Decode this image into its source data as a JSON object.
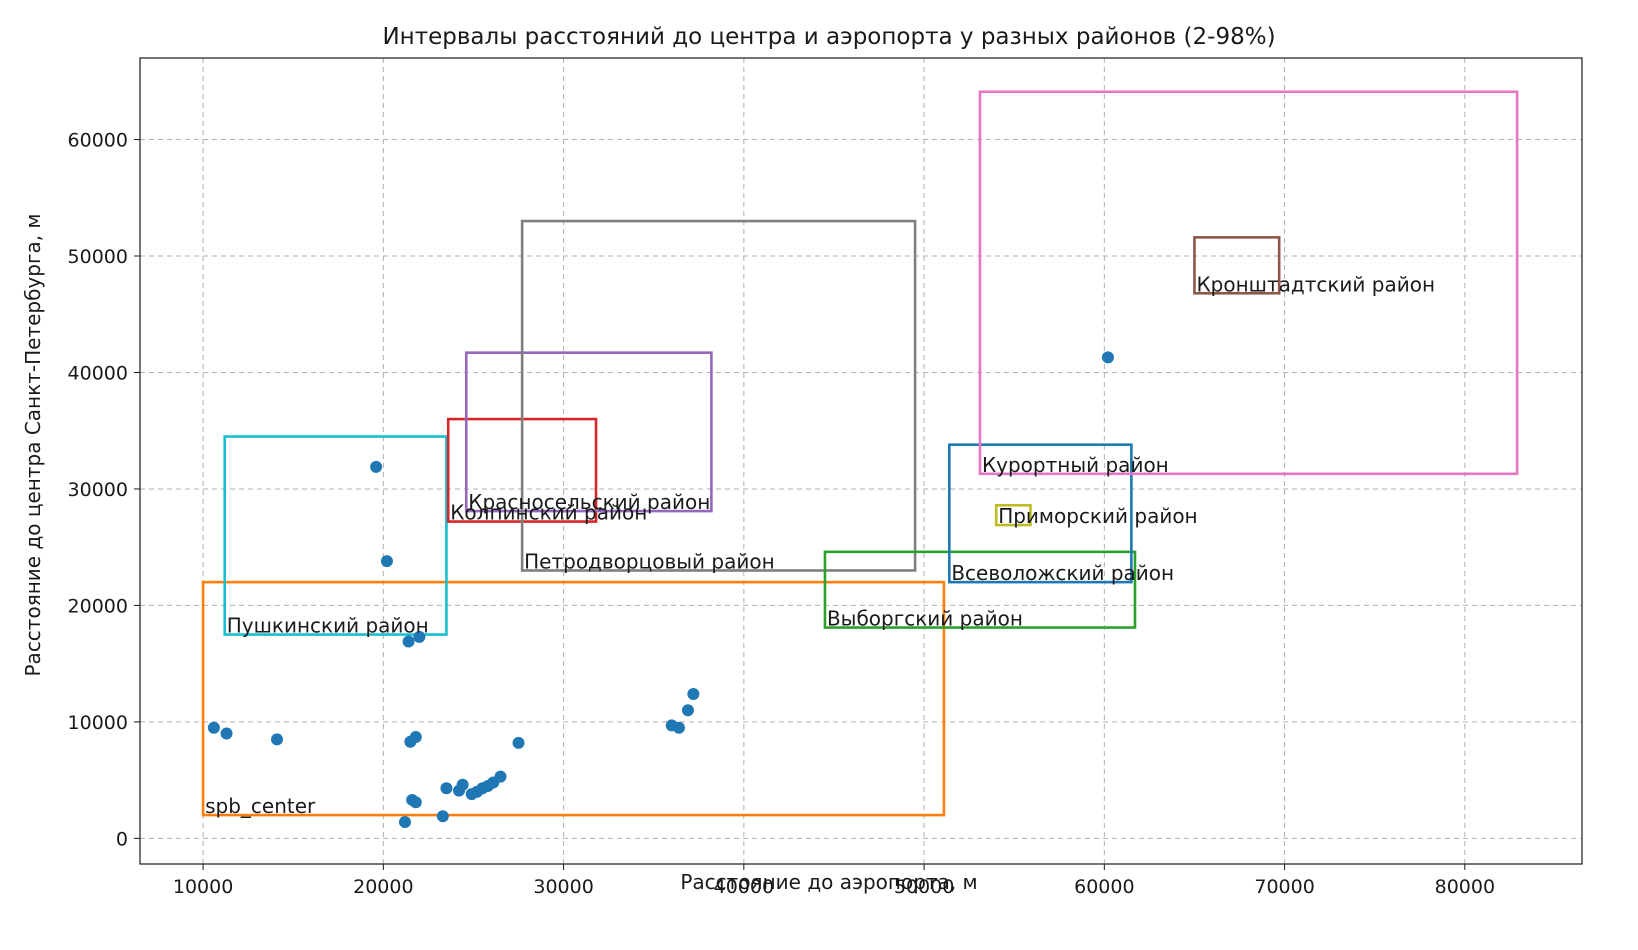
{
  "chart_data": {
    "type": "scatter",
    "title": "Интервалы расстояний до центра и аэропорта у разных районов (2-98%)",
    "xlabel": "Расстояние до аэропорта, м",
    "ylabel": "Расстояние до центра Санкт-Петербурга, м",
    "xlim": [
      6500,
      86500
    ],
    "ylim": [
      -2200,
      67000
    ],
    "xticks": [
      10000,
      20000,
      30000,
      40000,
      50000,
      60000,
      70000,
      80000
    ],
    "yticks": [
      0,
      10000,
      20000,
      30000,
      40000,
      50000,
      60000
    ],
    "grid": true,
    "point_color": "#1f77b4",
    "points": [
      {
        "x": 10600,
        "y": 9500
      },
      {
        "x": 11300,
        "y": 9000
      },
      {
        "x": 14100,
        "y": 8500
      },
      {
        "x": 19600,
        "y": 31900
      },
      {
        "x": 20200,
        "y": 23800
      },
      {
        "x": 21400,
        "y": 16900
      },
      {
        "x": 22000,
        "y": 17300
      },
      {
        "x": 21500,
        "y": 8300
      },
      {
        "x": 21800,
        "y": 8700
      },
      {
        "x": 21200,
        "y": 1400
      },
      {
        "x": 21600,
        "y": 3300
      },
      {
        "x": 21800,
        "y": 3100
      },
      {
        "x": 23300,
        "y": 1900
      },
      {
        "x": 23500,
        "y": 4300
      },
      {
        "x": 24200,
        "y": 4100
      },
      {
        "x": 24400,
        "y": 4600
      },
      {
        "x": 24900,
        "y": 3800
      },
      {
        "x": 25200,
        "y": 4000
      },
      {
        "x": 25500,
        "y": 4300
      },
      {
        "x": 25800,
        "y": 4500
      },
      {
        "x": 26100,
        "y": 4800
      },
      {
        "x": 26500,
        "y": 5300
      },
      {
        "x": 27500,
        "y": 8200
      },
      {
        "x": 36000,
        "y": 9700
      },
      {
        "x": 36400,
        "y": 9500
      },
      {
        "x": 36900,
        "y": 11000
      },
      {
        "x": 37200,
        "y": 12400
      },
      {
        "x": 60200,
        "y": 41300
      }
    ],
    "districts": [
      {
        "name": "spb_center",
        "x0": 10000,
        "x1": 51100,
        "y0": 2000,
        "y1": 22000,
        "color": "#ff7f0e"
      },
      {
        "name": "Пушкинский район",
        "x0": 11200,
        "x1": 23500,
        "y0": 17500,
        "y1": 34500,
        "color": "#17becf"
      },
      {
        "name": "Колпинский район",
        "x0": 23600,
        "x1": 31800,
        "y0": 27200,
        "y1": 36000,
        "color": "#d62728"
      },
      {
        "name": "Красносельский район",
        "x0": 24600,
        "x1": 38200,
        "y0": 28100,
        "y1": 41700,
        "color": "#9467bd"
      },
      {
        "name": "Петродворцовый район",
        "x0": 27700,
        "x1": 49500,
        "y0": 23000,
        "y1": 53000,
        "color": "#7f7f7f"
      },
      {
        "name": "Выборгский район",
        "x0": 44500,
        "x1": 61700,
        "y0": 18100,
        "y1": 24600,
        "color": "#2ca02c"
      },
      {
        "name": "Всеволожский район",
        "x0": 51400,
        "x1": 61500,
        "y0": 22000,
        "y1": 33800,
        "color": "#1f77b4"
      },
      {
        "name": "Приморский район",
        "x0": 54000,
        "x1": 55900,
        "y0": 26900,
        "y1": 28600,
        "color": "#bcbd22"
      },
      {
        "name": "Курортный район",
        "x0": 53100,
        "x1": 82900,
        "y0": 31300,
        "y1": 64100,
        "color": "#e377c2"
      },
      {
        "name": "Кронштадтский район",
        "x0": 65000,
        "x1": 69700,
        "y0": 46800,
        "y1": 51600,
        "color": "#8c564b"
      }
    ]
  }
}
